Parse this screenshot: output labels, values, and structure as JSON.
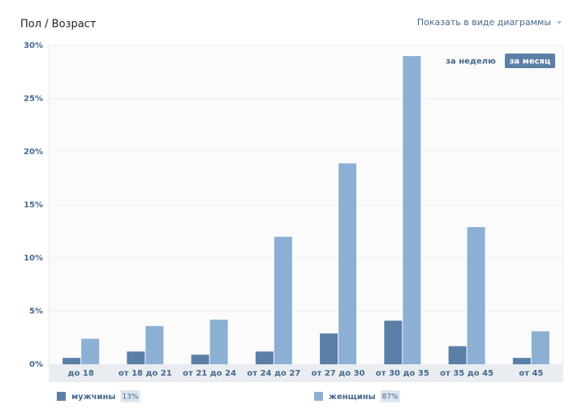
{
  "chart_data": {
    "type": "bar",
    "title": "Пол / Возраст",
    "toggle_label": "Показать в виде диаграммы",
    "period_options": [
      "за неделю",
      "за месяц"
    ],
    "active_period": 1,
    "categories": [
      "до 18",
      "от 18 до 21",
      "от 21 до 24",
      "от 24 до 27",
      "от 27 до 30",
      "от 30 до 35",
      "от 35 до 45",
      "от 45"
    ],
    "series": [
      {
        "name": "мужчины",
        "color": "#5b7fa6",
        "share": "13%",
        "values": [
          0.6,
          1.2,
          0.9,
          1.2,
          2.9,
          4.1,
          1.7,
          0.6
        ]
      },
      {
        "name": "женщины",
        "color": "#8bb0d4",
        "share": "87%",
        "values": [
          2.4,
          3.6,
          4.2,
          12.0,
          18.9,
          29.0,
          12.9,
          3.1
        ]
      }
    ],
    "ylim": [
      0,
      30
    ],
    "yticks": [
      {
        "value": 0,
        "label": "0%"
      },
      {
        "value": 5,
        "label": "5%"
      },
      {
        "value": 10,
        "label": "10%"
      },
      {
        "value": 15,
        "label": "15%"
      },
      {
        "value": 20,
        "label": "20%"
      },
      {
        "value": 25,
        "label": "25%"
      },
      {
        "value": 30,
        "label": "30%"
      }
    ],
    "grid": true
  }
}
